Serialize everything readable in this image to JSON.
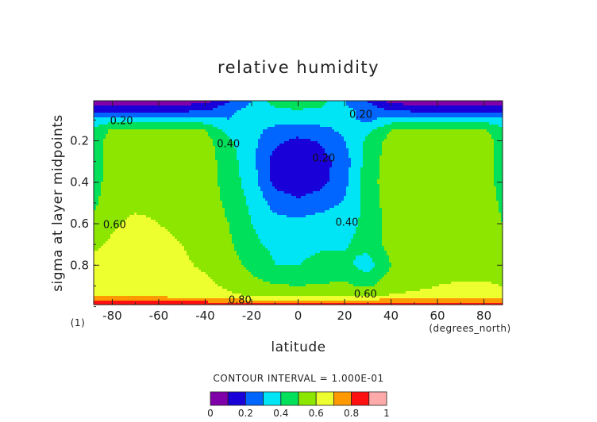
{
  "chart_data": {
    "type": "filled-contour",
    "title": "relative humidity",
    "xlabel": "latitude",
    "ylabel": "sigma at layer midpoints",
    "x_units": "(degrees_north)",
    "corner_label": "(1)",
    "xlim": [
      -88,
      88
    ],
    "ylim": [
      0.99,
      0.007
    ],
    "y_inverted": true,
    "x_ticks": [
      "-80",
      "-60",
      "-40",
      "-20",
      "0",
      "20",
      "40",
      "60",
      "80"
    ],
    "y_ticks": [
      "0.2",
      "0.4",
      "0.6",
      "0.8"
    ],
    "contour_interval_text": "CONTOUR INTERVAL = 1.000E-01",
    "contour_levels": [
      0.0,
      0.1,
      0.2,
      0.3,
      0.4,
      0.5,
      0.6,
      0.7,
      0.8,
      0.9,
      1.0
    ],
    "fill_colors": [
      "#7f00a8",
      "#1a00d8",
      "#0066ff",
      "#00e5f5",
      "#00e05a",
      "#8ce600",
      "#eeff30",
      "#ff9900",
      "#ff1010",
      "#ffaaaa"
    ],
    "colorbar_ticks": [
      "0",
      "0.2",
      "0.4",
      "0.6",
      "0.8",
      "1"
    ],
    "contour_labels": [
      "0.20",
      "0.20",
      "0.40",
      "0.20",
      "0.40",
      "0.60",
      "0.60",
      "0.80"
    ],
    "grid_lat": [
      -88,
      -80,
      -70,
      -60,
      -50,
      -40,
      -30,
      -20,
      -10,
      0,
      10,
      20,
      30,
      40,
      50,
      60,
      70,
      80,
      88
    ],
    "grid_sigma": [
      0.007,
      0.05,
      0.1,
      0.15,
      0.2,
      0.3,
      0.4,
      0.5,
      0.6,
      0.7,
      0.8,
      0.9,
      0.95,
      0.99
    ],
    "rh": [
      [
        0.05,
        0.05,
        0.05,
        0.05,
        0.05,
        0.06,
        0.18,
        0.3,
        0.45,
        0.48,
        0.45,
        0.3,
        0.18,
        0.06,
        0.05,
        0.05,
        0.05,
        0.05,
        0.05
      ],
      [
        0.15,
        0.15,
        0.15,
        0.15,
        0.16,
        0.18,
        0.28,
        0.32,
        0.38,
        0.4,
        0.38,
        0.32,
        0.28,
        0.18,
        0.16,
        0.15,
        0.15,
        0.15,
        0.15
      ],
      [
        0.34,
        0.36,
        0.38,
        0.38,
        0.37,
        0.35,
        0.3,
        0.36,
        0.35,
        0.33,
        0.34,
        0.32,
        0.28,
        0.35,
        0.38,
        0.38,
        0.38,
        0.36,
        0.34
      ],
      [
        0.42,
        0.52,
        0.53,
        0.53,
        0.53,
        0.5,
        0.36,
        0.34,
        0.26,
        0.24,
        0.27,
        0.32,
        0.38,
        0.5,
        0.53,
        0.53,
        0.53,
        0.52,
        0.42
      ],
      [
        0.45,
        0.55,
        0.56,
        0.56,
        0.55,
        0.54,
        0.42,
        0.33,
        0.22,
        0.18,
        0.21,
        0.3,
        0.42,
        0.54,
        0.55,
        0.56,
        0.56,
        0.55,
        0.45
      ],
      [
        0.45,
        0.55,
        0.56,
        0.56,
        0.56,
        0.55,
        0.45,
        0.33,
        0.16,
        0.14,
        0.16,
        0.25,
        0.45,
        0.55,
        0.56,
        0.56,
        0.56,
        0.55,
        0.45
      ],
      [
        0.46,
        0.55,
        0.56,
        0.56,
        0.56,
        0.55,
        0.46,
        0.35,
        0.17,
        0.14,
        0.17,
        0.27,
        0.46,
        0.55,
        0.56,
        0.56,
        0.56,
        0.55,
        0.46
      ],
      [
        0.48,
        0.56,
        0.57,
        0.57,
        0.56,
        0.55,
        0.48,
        0.38,
        0.26,
        0.22,
        0.26,
        0.31,
        0.44,
        0.55,
        0.56,
        0.57,
        0.57,
        0.56,
        0.48
      ],
      [
        0.53,
        0.58,
        0.63,
        0.6,
        0.57,
        0.56,
        0.5,
        0.4,
        0.34,
        0.33,
        0.35,
        0.36,
        0.43,
        0.55,
        0.56,
        0.57,
        0.57,
        0.56,
        0.5
      ],
      [
        0.58,
        0.62,
        0.66,
        0.64,
        0.6,
        0.56,
        0.52,
        0.42,
        0.38,
        0.38,
        0.39,
        0.39,
        0.44,
        0.54,
        0.56,
        0.57,
        0.57,
        0.56,
        0.52
      ],
      [
        0.63,
        0.66,
        0.68,
        0.66,
        0.62,
        0.58,
        0.55,
        0.47,
        0.4,
        0.4,
        0.42,
        0.43,
        0.35,
        0.5,
        0.56,
        0.57,
        0.57,
        0.57,
        0.55
      ],
      [
        0.66,
        0.68,
        0.69,
        0.68,
        0.66,
        0.63,
        0.58,
        0.54,
        0.51,
        0.5,
        0.51,
        0.52,
        0.48,
        0.56,
        0.58,
        0.6,
        0.61,
        0.61,
        0.6
      ],
      [
        0.7,
        0.7,
        0.7,
        0.69,
        0.67,
        0.65,
        0.62,
        0.6,
        0.59,
        0.58,
        0.59,
        0.6,
        0.6,
        0.61,
        0.62,
        0.63,
        0.64,
        0.64,
        0.63
      ],
      [
        0.88,
        0.88,
        0.88,
        0.88,
        0.88,
        0.88,
        0.86,
        0.85,
        0.85,
        0.85,
        0.85,
        0.85,
        0.85,
        0.86,
        0.87,
        0.88,
        0.88,
        0.88,
        0.88
      ]
    ]
  }
}
